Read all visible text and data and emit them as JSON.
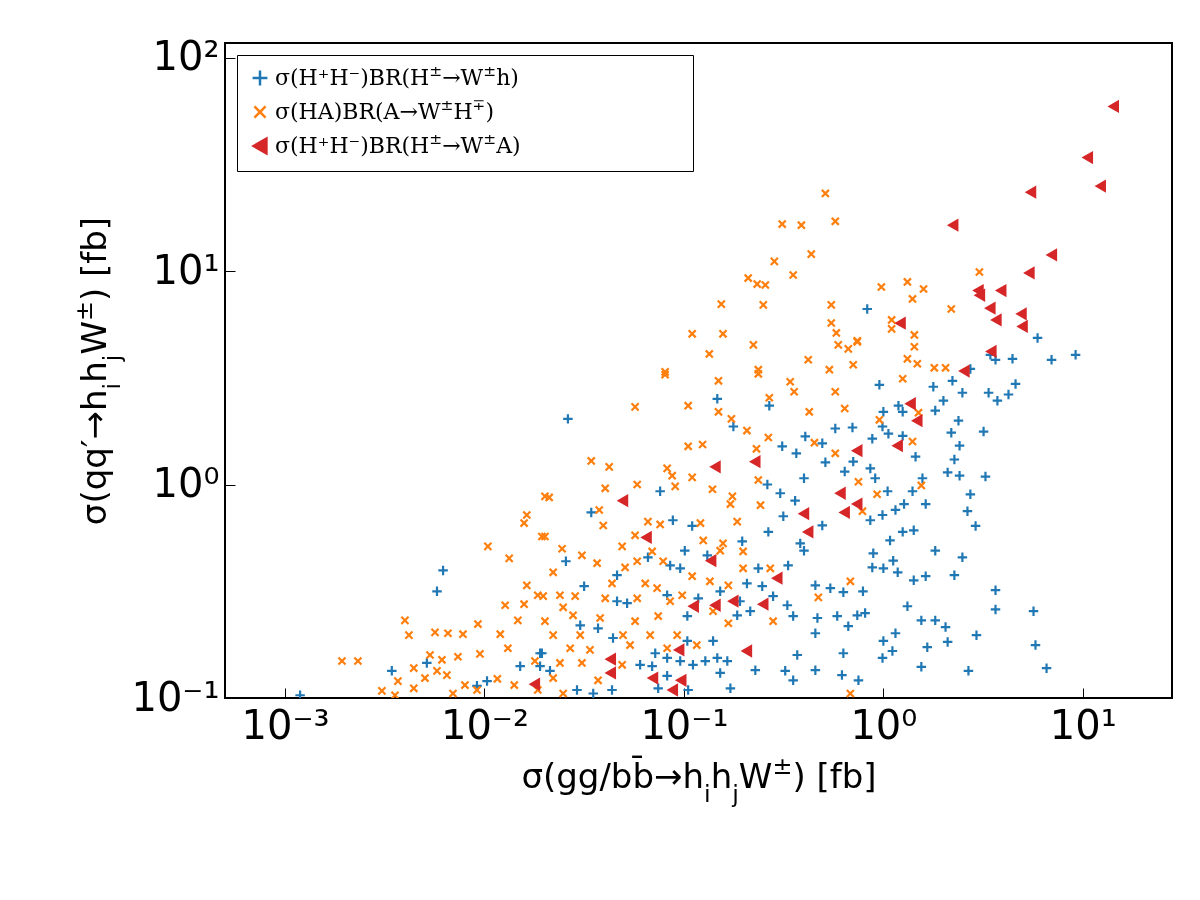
{
  "chart_data": {
    "type": "scatter",
    "xlabel": "σ(gg/bb̄→h$_{i}$h$_{j}$W$^{±}$) [fb]",
    "ylabel": "σ(qq′→h$_{i}$h$_{j}$W$^{±}$) [fb]",
    "log": "xy",
    "grid": false,
    "legend": "top left",
    "xlim": [
      0.0005,
      28
    ],
    "ylim": [
      0.1,
      117
    ],
    "xticks": [
      {
        "value": 0.001,
        "label": "10⁻³"
      },
      {
        "value": 0.01,
        "label": "10⁻²"
      },
      {
        "value": 0.1,
        "label": "10⁻¹"
      },
      {
        "value": 1,
        "label": "10⁰"
      },
      {
        "value": 10,
        "label": "10¹"
      }
    ],
    "yticks": [
      {
        "value": 0.1,
        "label": "10⁻¹"
      },
      {
        "value": 1,
        "label": "10⁰"
      },
      {
        "value": 10,
        "label": "10¹"
      },
      {
        "value": 100,
        "label": "10²"
      }
    ],
    "series": [
      {
        "name": "σ(H⁺H⁻)BR(H$^{±}$→W$^{±}$h)",
        "color": "#1f77b4",
        "marker": "cross",
        "x": [
          0.955,
          4.6,
          4.24,
          3.73,
          3.37,
          2.49,
          2.22,
          2.0,
          1.78,
          3.18,
          2.38,
          2.19,
          2.41,
          2.27,
          2.1,
          2.41,
          3.25,
          2.73,
          2.64,
          2.9,
          1.82,
          2.49,
          2.27,
          3.65,
          3.65,
          5.66,
          5.79,
          6.58,
          2.93,
          2.67,
          2.1,
          2.05,
          1.82,
          1.55,
          1.66,
          1.55,
          1.32,
          1.15,
          1.0,
          0.99,
          1.11,
          0.75,
          0.81,
          0.79,
          1.63,
          1.42,
          1.18,
          1.0,
          0.88,
          1.12,
          1.42,
          1.25,
          1.08,
          0.89,
          0.99,
          0.86,
          1.15,
          1.27,
          1.63,
          1.4,
          1.57,
          1.05,
          0.91,
          0.86,
          0.88,
          1.06,
          1.25,
          1.45,
          1.25,
          1.0,
          0.99,
          1.82,
          1.19,
          0.0262,
          0.147,
          0.268,
          0.177,
          0.076,
          0.0343,
          0.088,
          0.11,
          0.0256,
          0.0316,
          0.0462,
          0.0519,
          0.066,
          0.101,
          0.131,
          0.196,
          0.265,
          0.315,
          0.361,
          0.304,
          0.262,
          0.311,
          0.406,
          0.366,
          0.574,
          0.7,
          0.494,
          0.512,
          0.4,
          0.64,
          0.706,
          0.494,
          0.383,
          0.4,
          0.333,
          0.236,
          0.207,
          0.28,
          0.191,
          0.33,
          0.215,
          0.456,
          0.542,
          0.63,
          0.353,
          0.467,
          0.587,
          0.456,
          0.667,
          0.74,
          0.63,
          0.37,
          0.322,
          0.456,
          0.62,
          0.353,
          0.228,
          0.165,
          0.147,
          0.152,
          0.128,
          0.14,
          0.104,
          0.111,
          0.0958,
          0.0824,
          0.0718,
          0.0693,
          0.0603,
          0.0824,
          0.105,
          0.171,
          0.0743,
          0.0436,
          0.0351,
          0.0291,
          0.0441,
          0.0371,
          0.0302,
          0.0213,
          0.0194,
          0.0462,
          0.0824,
          0.104,
          0.118,
          0.0853,
          0.0958,
          0.152,
          0.185,
          0.247,
          0.0062,
          0.00578,
          0.00119,
          0.00343,
          0.00514,
          0.0103,
          0.00917,
          0.0151,
          0.019,
          0.019,
          9.2,
          6.97,
          5.93,
          4.44,
          3.65,
          3.44,
          0.83,
          2.73
        ],
        "values": [
          2.93,
          2.96,
          2.64,
          2.47,
          2.69,
          2.69,
          3.06,
          2.47,
          2.87,
          1.77,
          1.99,
          1.75,
          1.52,
          1.31,
          1.14,
          1.1,
          1.09,
          0.9,
          0.75,
          0.64,
          0.49,
          0.456,
          0.376,
          0.32,
          0.26,
          0.255,
          0.177,
          0.138,
          0.197,
          0.134,
          0.183,
          0.215,
          0.231,
          0.231,
          0.173,
          0.14,
          0.269,
          0.201,
          0.185,
          0.154,
          0.166,
          0.121,
          0.25,
          0.316,
          0.372,
          0.356,
          0.388,
          0.405,
          0.409,
          0.44,
          0.61,
          0.6,
          0.547,
          0.476,
          0.72,
          0.68,
          0.76,
          0.81,
          0.81,
          0.93,
          1.07,
          0.93,
          1.07,
          1.19,
          1.64,
          1.73,
          1.69,
          1.35,
          2.19,
          2.19,
          1.87,
          2.22,
          2.34,
          2.03,
          2.52,
          2.34,
          1.87,
          0.93,
          0.74,
          0.68,
          0.64,
          0.437,
          0.334,
          0.376,
          0.278,
          0.456,
          0.49,
          0.466,
          0.542,
          0.6,
          0.71,
          0.84,
          0.91,
          1.0,
          1.51,
          1.68,
          1.4,
          1.83,
          1.85,
          1.56,
          1.27,
          1.07,
          1.15,
          1.28,
          0.643,
          0.53,
          0.49,
          0.418,
          0.405,
          0.344,
          0.3,
          0.284,
          0.272,
          0.255,
          0.337,
          0.327,
          0.313,
          0.242,
          0.237,
          0.242,
          0.201,
          0.217,
          0.244,
          0.162,
          0.159,
          0.134,
          0.135,
          0.128,
          0.121,
          0.135,
          0.149,
          0.154,
          0.131,
          0.149,
          0.185,
          0.185,
          0.143,
          0.149,
          0.154,
          0.162,
          0.141,
          0.143,
          0.127,
          0.109,
          0.111,
          0.111,
          0.109,
          0.105,
          0.109,
          0.191,
          0.212,
          0.219,
          0.134,
          0.162,
          0.284,
          0.303,
          0.242,
          0.293,
          0.418,
          0.405,
          0.316,
          0.244,
          0.334,
          0.396,
          0.316,
          0.103,
          0.134,
          0.146,
          0.12,
          0.114,
          0.141,
          0.162,
          0.141,
          4.05,
          3.84,
          4.86,
          3.88,
          3.84,
          4.05,
          6.64,
          3.48
        ]
      },
      {
        "name": "σ(HA)BR(A→W$^{±}$H$^{∓}$)",
        "color": "#ff7f0e",
        "marker": "x",
        "x": [
          0.512,
          0.311,
          0.388,
          0.574,
          0.435,
          0.284,
          0.353,
          0.21,
          0.233,
          0.256,
          0.154,
          0.25,
          0.548,
          0.548,
          0.581,
          0.594,
          0.667,
          0.74,
          0.706,
          0.11,
          0.157,
          0.134,
          0.223,
          0.42,
          0.536,
          0.236,
          0.0805,
          3.03,
          0.977,
          1.32,
          1.59,
          1.4,
          2.19,
          1.1,
          1.1,
          1.43,
          1.43,
          1.32,
          1.48,
          1.8,
          2.05,
          0.74,
          1.25,
          0.955,
          1.5,
          1.4,
          1.55,
          0.93,
          0.75,
          0.785,
          0.0805,
          0.149,
          0.236,
          0.341,
          0.357,
          0.574,
          0.268,
          0.425,
          0.64,
          0.149,
          0.105,
          0.0569,
          0.173,
          0.207,
          0.265,
          0.451,
          0.574,
          0.105,
          0.124,
          0.231,
          0.0343,
          0.0422,
          0.0824,
          0.0873,
          0.0583,
          0.11,
          0.236,
          0.0403,
          0.0904,
          0.139,
          0.0211,
          0.175,
          0.171,
          0.242,
          0.0376,
          0.0394,
          0.066,
          0.076,
          0.121,
          0.185,
          0.0201,
          0.0569,
          0.049,
          0.0245,
          0.0308,
          0.0693,
          0.125,
          0.157,
          0.152,
          0.198,
          0.0367,
          0.0507,
          0.0583,
          0.0787,
          0.0221,
          0.0436,
          0.064,
          0.0734,
          0.11,
          0.135,
          0.167,
          0.198,
          0.271,
          0.0197,
          0.0239,
          0.0285,
          0.0403,
          0.0583,
          0.0853,
          0.098,
          0.0248,
          0.0278,
          0.038,
          0.0569,
          0.0743,
          0.14,
          0.167,
          0.28,
          0.472,
          0.683,
          0.0201,
          0.0221,
          0.0302,
          0.0495,
          0.0677,
          0.0925,
          0.0269,
          0.0338,
          0.0537,
          0.0824,
          0.116,
          0.0239,
          0.0308,
          0.049,
          0.0221,
          0.0371,
          0.0248,
          0.683,
          0.0201,
          0.0163,
          0.0158,
          0.0194,
          0.0104,
          0.0133,
          0.0163,
          0.0185,
          0.0127,
          0.0158,
          0.0147,
          0.00399,
          0.00418,
          0.00565,
          0.00656,
          0.0078,
          0.00927,
          0.012,
          0.0131,
          0.00533,
          0.00736,
          0.00949,
          0.00612,
          0.00193,
          0.00232,
          0.00442,
          0.00578,
          0.00648,
          0.00368,
          0.00503,
          0.0116,
          0.00798,
          0.0141,
          0.00306,
          0.00442,
          0.00695,
          0.00356,
          0.00917,
          0.0185,
          0.0179
        ],
        "values": [
          23.1,
          16.6,
          16.4,
          17.1,
          12.0,
          11.1,
          9.58,
          9.27,
          8.69,
          8.6,
          7.0,
          6.94,
          6.94,
          5.71,
          5.13,
          4.51,
          4.32,
          4.71,
          3.64,
          5.08,
          5.08,
          4.09,
          4.51,
          3.84,
          3.45,
          3.45,
          3.37,
          9.9,
          8.42,
          8.89,
          8.24,
          7.4,
          6.64,
          5.9,
          5.36,
          5.02,
          4.42,
          3.88,
          3.68,
          3.52,
          3.52,
          4.66,
          3.13,
          2.01,
          2.17,
          1.59,
          0.99,
          0.9,
          1.03,
          0.75,
          3.27,
          3.06,
          3.3,
          3.03,
          2.72,
          2.72,
          2.55,
          2.19,
          2.27,
          2.19,
          2.34,
          2.31,
          2.03,
          1.79,
          1.66,
          1.57,
          1.4,
          1.51,
          1.54,
          1.47,
          1.29,
          1.21,
          1.19,
          1.1,
          1.0,
          1.08,
          1.05,
          0.96,
          0.98,
          0.95,
          0.87,
          0.88,
          0.81,
          0.8,
          0.76,
          0.643,
          0.67,
          0.65,
          0.66,
          0.67,
          0.571,
          0.578,
          0.513,
          0.5,
          0.466,
          0.486,
          0.547,
          0.53,
          0.49,
          0.486,
          0.428,
          0.409,
          0.437,
          0.437,
          0.388,
          0.344,
          0.344,
          0.327,
          0.372,
          0.352,
          0.337,
          0.405,
          0.405,
          0.3,
          0.303,
          0.3,
          0.293,
          0.293,
          0.284,
          0.303,
          0.266,
          0.244,
          0.237,
          0.229,
          0.242,
          0.255,
          0.224,
          0.229,
          0.296,
          0.352,
          0.229,
          0.197,
          0.197,
          0.197,
          0.197,
          0.197,
          0.171,
          0.168,
          0.177,
          0.171,
          0.177,
          0.146,
          0.146,
          0.143,
          0.124,
          0.121,
          0.105,
          0.105,
          0.88,
          0.72,
          0.66,
          0.571,
          0.513,
          0.451,
          0.337,
          0.303,
          0.272,
          0.275,
          0.231,
          0.231,
          0.197,
          0.203,
          0.201,
          0.199,
          0.222,
          0.199,
          0.171,
          0.159,
          0.156,
          0.161,
          0.151,
          0.149,
          0.149,
          0.138,
          0.134,
          0.128,
          0.12,
          0.124,
          0.123,
          0.115,
          0.115,
          0.108,
          0.111,
          0.105,
          0.103,
          0.109,
          0.109,
          0.149
        ]
      },
      {
        "name": "σ(H⁺H⁻)BR(H$^{±}$→W$^{±}$A)",
        "color": "#d62728",
        "marker": "triangle-left",
        "x": [
          14.3,
          10.6,
          12.3,
          5.5,
          2.24,
          7.0,
          5.4,
          3.0,
          3.05,
          3.9,
          3.44,
          3.69,
          4.93,
          4.99,
          1.22,
          3.48,
          2.55,
          1.37,
          1.48,
          1.18,
          0.74,
          0.74,
          0.228,
          0.144,
          0.0495,
          0.61,
          0.64,
          0.4,
          0.42,
          0.065,
          0.137,
          0.294,
          0.112,
          0.144,
          0.177,
          0.25,
          0.207,
          0.0947,
          0.043,
          0.043,
          0.07,
          0.097,
          0.088,
          0.0179
        ],
        "values": [
          59,
          34,
          25,
          23.4,
          16.4,
          11.9,
          9.8,
          8.1,
          7.7,
          8.1,
          6.7,
          5.9,
          6.3,
          5.5,
          5.7,
          4.2,
          3.4,
          2.39,
          1.99,
          1.52,
          1.44,
          0.81,
          1.28,
          1.21,
          0.84,
          0.91,
          0.74,
          0.73,
          0.6,
          0.565,
          0.44,
          0.364,
          0.269,
          0.272,
          0.284,
          0.275,
          0.166,
          0.168,
          0.152,
          0.131,
          0.124,
          0.121,
          0.109,
          0.116
        ]
      }
    ]
  }
}
